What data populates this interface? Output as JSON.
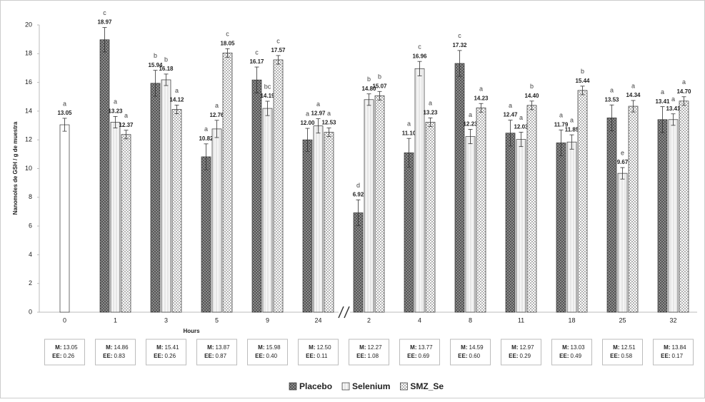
{
  "chart_data": {
    "type": "bar",
    "y_label": "Nanomoles de GSH / g de muestra",
    "x_label": "Hours",
    "categories": [
      "0",
      "1",
      "3",
      "5",
      "9",
      "24",
      "2",
      "4",
      "8",
      "11",
      "18",
      "25",
      "32"
    ],
    "ylim": [
      0,
      20
    ],
    "yticks": [
      0,
      2,
      4,
      6,
      8,
      10,
      12,
      14,
      16,
      18,
      20
    ],
    "grid": false,
    "baseline": {
      "value": 13.05,
      "value_label": "13.05",
      "error": 0.45,
      "letter": "a",
      "color": "#ffffff"
    },
    "series": [
      {
        "name": "Placebo",
        "color": "#8c8c8c",
        "values": [
          null,
          18.97,
          15.94,
          10.82,
          16.17,
          12.0,
          6.92,
          11.1,
          17.32,
          12.47,
          11.79,
          13.53,
          13.41
        ],
        "value_labels": [
          null,
          "18.97",
          "15.94",
          "10.82",
          "16.17",
          "12.00",
          "6.92",
          "11.10",
          "17.32",
          "12.47",
          "11.79",
          "13.53",
          "13.41"
        ],
        "errors": [
          null,
          0.85,
          0.9,
          0.9,
          0.9,
          0.8,
          0.9,
          1.0,
          0.9,
          0.9,
          0.9,
          0.9,
          0.9
        ],
        "letters": [
          null,
          "c",
          "b",
          "a",
          "c",
          "a",
          "d",
          "a",
          "c",
          "a",
          "a",
          "a",
          "a"
        ]
      },
      {
        "name": "Selenium",
        "color": "#e6e6e6",
        "values": [
          null,
          13.23,
          16.18,
          12.76,
          14.19,
          12.97,
          14.8,
          16.96,
          12.23,
          12.03,
          11.85,
          9.67,
          13.41
        ],
        "value_labels": [
          null,
          "13.23",
          "16.18",
          "12.76",
          "14.19",
          "12.97",
          "14.80",
          "16.96",
          "12.23",
          "12.03",
          "11.85",
          "9.67",
          "13.41"
        ],
        "errors": [
          null,
          0.4,
          0.4,
          0.6,
          0.5,
          0.5,
          0.4,
          0.5,
          0.5,
          0.5,
          0.5,
          0.4,
          0.4
        ],
        "letters": [
          null,
          "a",
          "b",
          "a",
          "bc",
          "a",
          "b",
          "c",
          "a",
          "a",
          "a",
          "e",
          "a"
        ]
      },
      {
        "name": "SMZ_Se",
        "color": "#b3b3b3",
        "values": [
          null,
          12.37,
          14.12,
          18.05,
          17.57,
          12.53,
          15.07,
          13.23,
          14.23,
          14.4,
          15.44,
          14.34,
          14.7
        ],
        "value_labels": [
          null,
          "12.37",
          "14.12",
          "18.05",
          "17.57",
          "12.53",
          "15.07",
          "13.23",
          "14.23",
          "14.40",
          "15.44",
          "14.34",
          "14.70"
        ],
        "errors": [
          null,
          0.3,
          0.3,
          0.3,
          0.3,
          0.3,
          0.3,
          0.3,
          0.3,
          0.3,
          0.3,
          0.4,
          0.3
        ],
        "letters": [
          null,
          "a",
          "a",
          "c",
          "c",
          "a",
          "b",
          "a",
          "a",
          "b",
          "b",
          "a",
          "a"
        ]
      }
    ],
    "stats": {
      "mean_label": "M:",
      "ee_label": "EE:",
      "means": [
        "13.05",
        "14.86",
        "15.41",
        "13.87",
        "15.98",
        "12.50",
        "12.27",
        "13.77",
        "14.59",
        "12.97",
        "13.03",
        "12.51",
        "13.84"
      ],
      "ee": [
        "0.26",
        "0.83",
        "0.26",
        "0.87",
        "0.40",
        "0.11",
        "1.08",
        "0.69",
        "0.60",
        "0.29",
        "0.49",
        "0.58",
        "0.17"
      ]
    }
  }
}
